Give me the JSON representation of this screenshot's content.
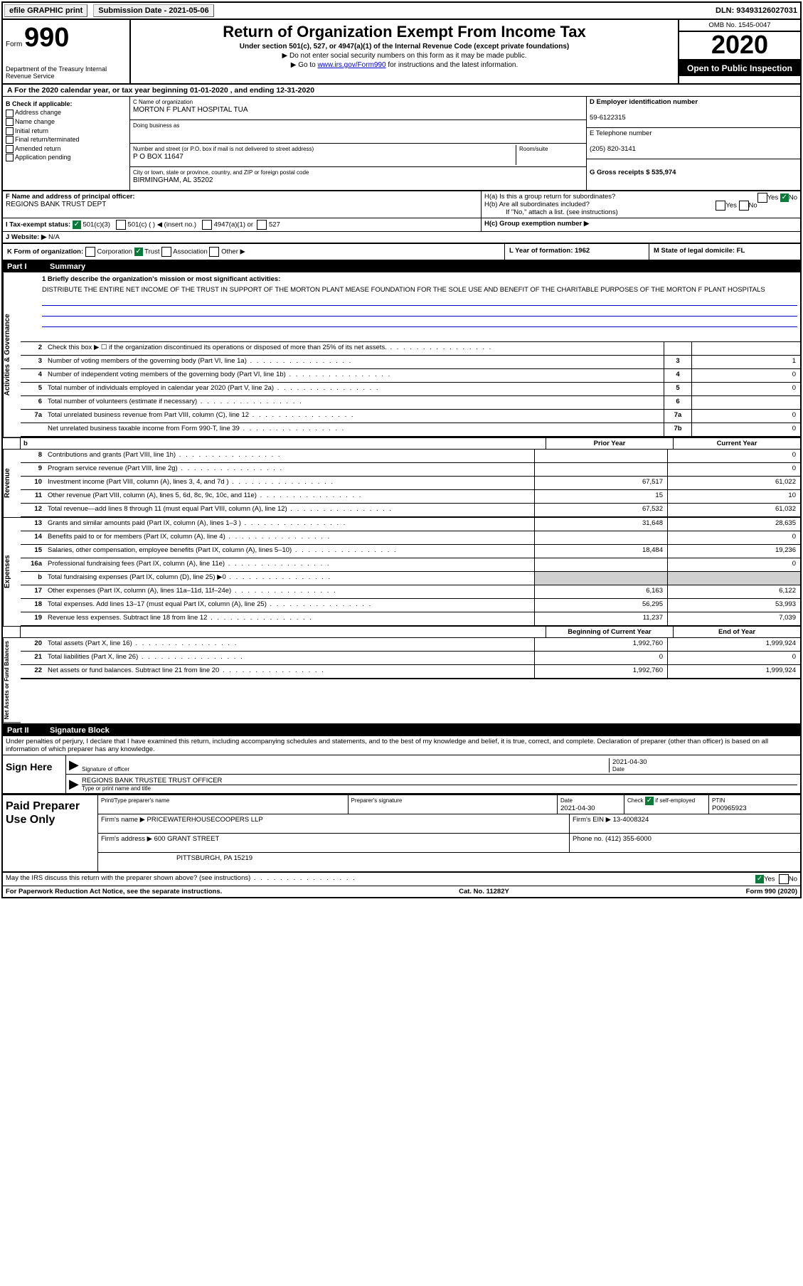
{
  "top_bar": {
    "efile_btn": "efile GRAPHIC print",
    "submission_label": "Submission Date - 2021-05-06",
    "dln": "DLN: 93493126027031"
  },
  "header": {
    "form_label": "Form",
    "form_number": "990",
    "dept": "Department of the Treasury\nInternal Revenue Service",
    "title": "Return of Organization Exempt From Income Tax",
    "subtitle": "Under section 501(c), 527, or 4947(a)(1) of the Internal Revenue Code (except private foundations)",
    "instr1": "▶ Do not enter social security numbers on this form as it may be made public.",
    "instr2_prefix": "▶ Go to ",
    "instr2_link": "www.irs.gov/Form990",
    "instr2_suffix": " for instructions and the latest information.",
    "omb": "OMB No. 1545-0047",
    "year": "2020",
    "inspection": "Open to Public Inspection"
  },
  "period": {
    "line": "A For the 2020 calendar year, or tax year beginning 01-01-2020     , and ending 12-31-2020"
  },
  "box_b": {
    "label": "B Check if applicable:",
    "opts": [
      "Address change",
      "Name change",
      "Initial return",
      "Final return/terminated",
      "Amended return",
      "Application pending"
    ]
  },
  "box_c": {
    "name_label": "C Name of organization",
    "name_val": "MORTON F PLANT HOSPITAL TUA",
    "dba_label": "Doing business as",
    "addr_label": "Number and street (or P.O. box if mail is not delivered to street address)",
    "suite_label": "Room/suite",
    "addr_val": "P O BOX 11647",
    "city_label": "City or town, state or province, country, and ZIP or foreign postal code",
    "city_val": "BIRMINGHAM, AL  35202"
  },
  "box_d": {
    "label": "D Employer identification number",
    "val": "59-6122315"
  },
  "box_e": {
    "label": "E Telephone number",
    "val": "(205) 820-3141"
  },
  "box_g": {
    "label": "G Gross receipts $ 535,974"
  },
  "box_f": {
    "label": "F  Name and address of principal officer:",
    "val": "REGIONS BANK TRUST DEPT"
  },
  "box_h": {
    "ha": "H(a)  Is this a group return for subordinates?",
    "hb": "H(b)  Are all subordinates included?",
    "hb_note": "If \"No,\" attach a list. (see instructions)",
    "hc": "H(c)  Group exemption number ▶"
  },
  "box_i": {
    "label": "I Tax-exempt status:",
    "opts": [
      "501(c)(3)",
      "501(c) (  ) ◀ (insert no.)",
      "4947(a)(1) or",
      "527"
    ]
  },
  "box_j": {
    "label": "J   Website: ▶",
    "val": "N/A"
  },
  "box_k": {
    "label": "K Form of organization:",
    "opts": [
      "Corporation",
      "Trust",
      "Association",
      "Other ▶"
    ]
  },
  "box_l": {
    "label": "L Year of formation: 1962"
  },
  "box_m": {
    "label": "M State of legal domicile: FL"
  },
  "part1": {
    "num": "Part I",
    "title": "Summary"
  },
  "mission": {
    "label": "1  Briefly describe the organization's mission or most significant activities:",
    "text": "DISTRIBUTE THE ENTIRE NET INCOME OF THE TRUST IN SUPPORT OF THE MORTON PLANT MEASE FOUNDATION FOR THE SOLE USE AND BENEFIT OF THE CHARITABLE PURPOSES OF THE MORTON F PLANT HOSPITALS"
  },
  "activities": [
    {
      "n": "2",
      "d": "Check this box ▶ ☐  if the organization discontinued its operations or disposed of more than 25% of its net assets.",
      "bn": "",
      "bv": ""
    },
    {
      "n": "3",
      "d": "Number of voting members of the governing body (Part VI, line 1a)",
      "bn": "3",
      "bv": "1"
    },
    {
      "n": "4",
      "d": "Number of independent voting members of the governing body (Part VI, line 1b)",
      "bn": "4",
      "bv": "0"
    },
    {
      "n": "5",
      "d": "Total number of individuals employed in calendar year 2020 (Part V, line 2a)",
      "bn": "5",
      "bv": "0"
    },
    {
      "n": "6",
      "d": "Total number of volunteers (estimate if necessary)",
      "bn": "6",
      "bv": ""
    },
    {
      "n": "7a",
      "d": "Total unrelated business revenue from Part VIII, column (C), line 12",
      "bn": "7a",
      "bv": "0"
    },
    {
      "n": "",
      "d": "Net unrelated business taxable income from Form 990-T, line 39",
      "bn": "7b",
      "bv": "0"
    }
  ],
  "col_headers": {
    "prior": "Prior Year",
    "current": "Current Year",
    "boy": "Beginning of Current Year",
    "eoy": "End of Year"
  },
  "revenue": [
    {
      "n": "8",
      "d": "Contributions and grants (Part VIII, line 1h)",
      "p": "",
      "c": "0"
    },
    {
      "n": "9",
      "d": "Program service revenue (Part VIII, line 2g)",
      "p": "",
      "c": "0"
    },
    {
      "n": "10",
      "d": "Investment income (Part VIII, column (A), lines 3, 4, and 7d )",
      "p": "67,517",
      "c": "61,022"
    },
    {
      "n": "11",
      "d": "Other revenue (Part VIII, column (A), lines 5, 6d, 8c, 9c, 10c, and 11e)",
      "p": "15",
      "c": "10"
    },
    {
      "n": "12",
      "d": "Total revenue—add lines 8 through 11 (must equal Part VIII, column (A), line 12)",
      "p": "67,532",
      "c": "61,032"
    }
  ],
  "expenses": [
    {
      "n": "13",
      "d": "Grants and similar amounts paid (Part IX, column (A), lines 1–3 )",
      "p": "31,648",
      "c": "28,635"
    },
    {
      "n": "14",
      "d": "Benefits paid to or for members (Part IX, column (A), line 4)",
      "p": "",
      "c": "0"
    },
    {
      "n": "15",
      "d": "Salaries, other compensation, employee benefits (Part IX, column (A), lines 5–10)",
      "p": "18,484",
      "c": "19,236"
    },
    {
      "n": "16a",
      "d": "Professional fundraising fees (Part IX, column (A), line 11e)",
      "p": "",
      "c": "0"
    },
    {
      "n": "b",
      "d": "Total fundraising expenses (Part IX, column (D), line 25) ▶0",
      "p": "shade",
      "c": "shade"
    },
    {
      "n": "17",
      "d": "Other expenses (Part IX, column (A), lines 11a–11d, 11f–24e)",
      "p": "6,163",
      "c": "6,122"
    },
    {
      "n": "18",
      "d": "Total expenses. Add lines 13–17 (must equal Part IX, column (A), line 25)",
      "p": "56,295",
      "c": "53,993"
    },
    {
      "n": "19",
      "d": "Revenue less expenses. Subtract line 18 from line 12",
      "p": "11,237",
      "c": "7,039"
    }
  ],
  "netassets": [
    {
      "n": "20",
      "d": "Total assets (Part X, line 16)",
      "p": "1,992,760",
      "c": "1,999,924"
    },
    {
      "n": "21",
      "d": "Total liabilities (Part X, line 26)",
      "p": "0",
      "c": "0"
    },
    {
      "n": "22",
      "d": "Net assets or fund balances. Subtract line 21 from line 20",
      "p": "1,992,760",
      "c": "1,999,924"
    }
  ],
  "vtabs": {
    "act": "Activities & Governance",
    "rev": "Revenue",
    "exp": "Expenses",
    "net": "Net Assets or Fund Balances"
  },
  "part2": {
    "num": "Part II",
    "title": "Signature Block"
  },
  "penalty": "Under penalties of perjury, I declare that I have examined this return, including accompanying schedules and statements, and to the best of my knowledge and belief, it is true, correct, and complete. Declaration of preparer (other than officer) is based on all information of which preparer has any knowledge.",
  "sign": {
    "label": "Sign Here",
    "sig_label": "Signature of officer",
    "date_label": "Date",
    "date_val": "2021-04-30",
    "name_val": "REGIONS BANK TRUSTEE  TRUST OFFICER",
    "name_label": "Type or print name and title"
  },
  "preparer": {
    "label": "Paid Preparer Use Only",
    "h1": "Print/Type preparer's name",
    "h2": "Preparer's signature",
    "h3": "Date",
    "h3v": "2021-04-30",
    "h4": "Check ☑ if self-employed",
    "h5": "PTIN",
    "h5v": "P00965923",
    "firm_label": "Firm's name     ▶",
    "firm_val": "PRICEWATERHOUSECOOPERS LLP",
    "ein_label": "Firm's EIN ▶ 13-4008324",
    "addr_label": "Firm's address ▶",
    "addr_val1": "600 GRANT STREET",
    "addr_val2": "PITTSBURGH, PA  15219",
    "phone_label": "Phone no. (412) 355-6000"
  },
  "discuss": {
    "q": "May the IRS discuss this return with the preparer shown above? (see instructions)",
    "yes": "Yes",
    "no": "No"
  },
  "footer": {
    "left": "For Paperwork Reduction Act Notice, see the separate instructions.",
    "mid": "Cat. No. 11282Y",
    "right": "Form 990 (2020)"
  }
}
